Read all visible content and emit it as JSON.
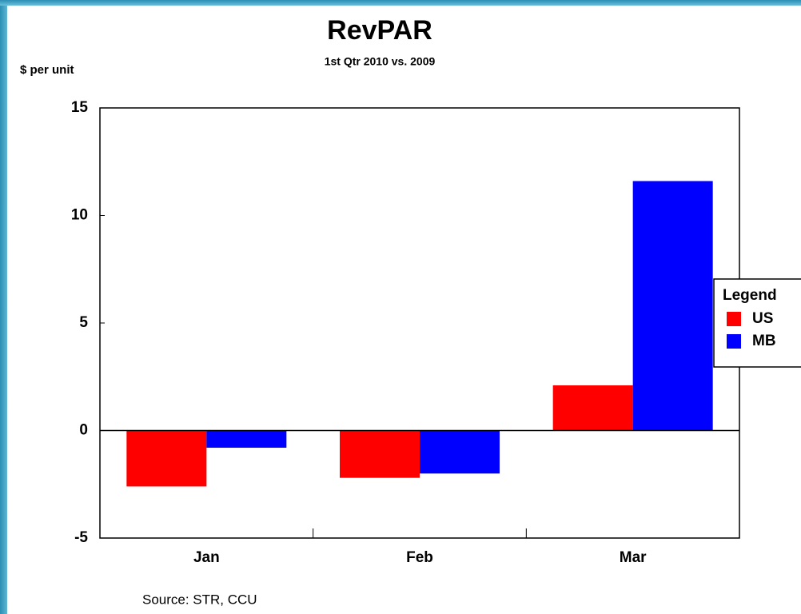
{
  "chart_data": {
    "type": "bar",
    "title": "RevPAR",
    "subtitle": "1st Qtr 2010 vs. 2009",
    "y_label": "$ per unit",
    "source": "Source:  STR, CCU",
    "categories": [
      "Jan",
      "Feb",
      "Mar"
    ],
    "series": [
      {
        "name": "US",
        "color": "#ff0000",
        "values": [
          -2.6,
          -2.2,
          2.1
        ]
      },
      {
        "name": "MB",
        "color": "#0000ff",
        "values": [
          -0.8,
          -2.0,
          11.6
        ]
      }
    ],
    "ylim": [
      -5,
      15
    ],
    "yticks": [
      -5,
      0,
      5,
      10,
      15
    ],
    "grid": false,
    "legend_title": "Legend",
    "legend_position": "right"
  }
}
